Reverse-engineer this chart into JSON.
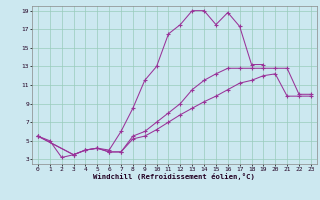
{
  "xlabel": "Windchill (Refroidissement éolien,°C)",
  "background_color": "#cce8f0",
  "grid_color": "#99ccbb",
  "line_color": "#993399",
  "xmin": 0,
  "xmax": 23,
  "ymin": 3,
  "ymax": 19,
  "line1_x": [
    0,
    1,
    2,
    3,
    4,
    5,
    6,
    7,
    8,
    9,
    10,
    11,
    12,
    13,
    14,
    15,
    16,
    17,
    18,
    19
  ],
  "line1_y": [
    5.5,
    5.0,
    3.2,
    3.5,
    4.0,
    4.2,
    4.0,
    6.0,
    8.5,
    11.5,
    13.0,
    16.5,
    17.5,
    19.0,
    19.0,
    17.5,
    18.8,
    17.3,
    13.2,
    13.2
  ],
  "line2_x": [
    0,
    3,
    4,
    5,
    6,
    7,
    8,
    9,
    10,
    11,
    12,
    13,
    14,
    15,
    16,
    17,
    18,
    19,
    20,
    21,
    22,
    23
  ],
  "line2_y": [
    5.5,
    3.5,
    4.0,
    4.2,
    3.8,
    3.8,
    5.5,
    6.0,
    7.0,
    8.0,
    9.0,
    10.5,
    11.5,
    12.2,
    12.8,
    12.8,
    12.8,
    12.8,
    12.8,
    12.8,
    10.0,
    10.0
  ],
  "line3_x": [
    0,
    3,
    4,
    5,
    6,
    7,
    8,
    9,
    10,
    11,
    12,
    13,
    14,
    15,
    16,
    17,
    18,
    19,
    20,
    21,
    22,
    23
  ],
  "line3_y": [
    5.5,
    3.5,
    4.0,
    4.2,
    3.8,
    3.8,
    5.2,
    5.5,
    6.2,
    7.0,
    7.8,
    8.5,
    9.2,
    9.8,
    10.5,
    11.2,
    11.5,
    12.0,
    12.2,
    9.8,
    9.8,
    9.8
  ],
  "yticks": [
    3,
    5,
    7,
    9,
    11,
    13,
    15,
    17,
    19
  ],
  "xticks": [
    0,
    1,
    2,
    3,
    4,
    5,
    6,
    7,
    8,
    9,
    10,
    11,
    12,
    13,
    14,
    15,
    16,
    17,
    18,
    19,
    20,
    21,
    22,
    23
  ]
}
